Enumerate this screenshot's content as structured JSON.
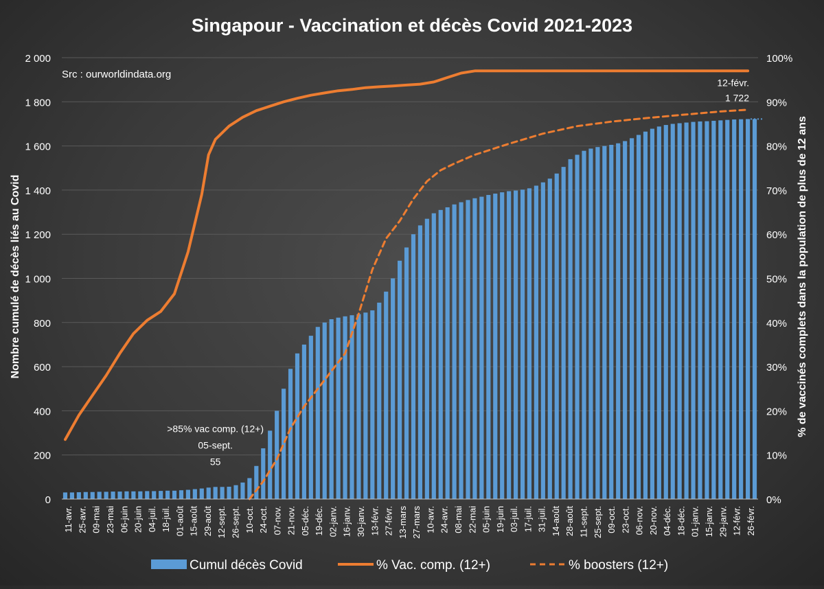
{
  "chart_data": {
    "type": "bar",
    "title": "Singapour - Vaccination et décès Covid 2021-2023",
    "source_note": "Src : ourworldindata.org",
    "ylabel": "Nombre cumulé de décès liés au Covid",
    "y2label": "% de vaccinés complets dans  la population de plus de 12 ans",
    "ylim": [
      0,
      2000
    ],
    "y_ticks": [
      "0",
      "200",
      "400",
      "600",
      "800",
      "1 000",
      "1 200",
      "1 400",
      "1 600",
      "1 800",
      "2 000"
    ],
    "y2lim": [
      0,
      100
    ],
    "y2_ticks": [
      "0%",
      "10%",
      "20%",
      "30%",
      "40%",
      "50%",
      "60%",
      "70%",
      "80%",
      "90%",
      "100%"
    ],
    "x_ticks": [
      "11-avr.",
      "25-avr.",
      "09-mai",
      "23-mai",
      "06-juin",
      "20-juin",
      "04-juil.",
      "18-juil.",
      "01-août",
      "15-août",
      "29-août",
      "12-sept.",
      "26-sept.",
      "10-oct.",
      "24-oct.",
      "07-nov.",
      "21-nov.",
      "05-déc.",
      "19-déc.",
      "02-janv.",
      "16-janv.",
      "30-janv.",
      "13-févr.",
      "27-févr.",
      "13-mars",
      "27-mars",
      "10-avr.",
      "24-avr.",
      "08-mai",
      "22-mai",
      "05-juin",
      "19-juin",
      "03-juil.",
      "17-juil.",
      "31-juil.",
      "14-août",
      "28-août",
      "11-sept.",
      "25-sept.",
      "09-oct.",
      "23-oct.",
      "06-nov.",
      "20-nov.",
      "04-déc.",
      "18-déc.",
      "01-janv.",
      "15-janv.",
      "29-janv.",
      "12-févr.",
      "26-févr."
    ],
    "grid": true,
    "legend_position": "bottom",
    "series": [
      {
        "name": "Cumul décès Covid",
        "type": "bar",
        "axis": "left",
        "color": "#5b9bd5",
        "values": [
          30,
          30,
          31,
          32,
          32,
          33,
          33,
          34,
          34,
          35,
          35,
          35,
          36,
          36,
          37,
          38,
          38,
          40,
          42,
          45,
          48,
          52,
          55,
          55,
          56,
          63,
          75,
          95,
          150,
          230,
          310,
          400,
          500,
          590,
          660,
          700,
          740,
          780,
          800,
          815,
          822,
          828,
          833,
          838,
          845,
          855,
          890,
          940,
          1000,
          1080,
          1140,
          1200,
          1240,
          1270,
          1295,
          1310,
          1322,
          1335,
          1345,
          1355,
          1363,
          1370,
          1378,
          1384,
          1390,
          1395,
          1398,
          1402,
          1408,
          1420,
          1435,
          1452,
          1475,
          1505,
          1540,
          1560,
          1578,
          1588,
          1595,
          1600,
          1605,
          1612,
          1622,
          1635,
          1650,
          1665,
          1678,
          1688,
          1695,
          1700,
          1703,
          1706,
          1709,
          1711,
          1712,
          1714,
          1716,
          1718,
          1720,
          1721,
          1722,
          1722
        ]
      },
      {
        "name": "% Vac. comp. (12+)",
        "type": "line",
        "axis": "right",
        "color": "#ed7d31",
        "dash": "solid",
        "points": [
          [
            0,
            13.5
          ],
          [
            2,
            19
          ],
          [
            4,
            23.5
          ],
          [
            6,
            28
          ],
          [
            8,
            33
          ],
          [
            10,
            37.5
          ],
          [
            12,
            40.5
          ],
          [
            14,
            42.5
          ],
          [
            16,
            46.5
          ],
          [
            18,
            56
          ],
          [
            20,
            69
          ],
          [
            21,
            78
          ],
          [
            22,
            81.5
          ],
          [
            24,
            84.5
          ],
          [
            26,
            86.5
          ],
          [
            28,
            88
          ],
          [
            30,
            89
          ],
          [
            32,
            90
          ],
          [
            34,
            90.8
          ],
          [
            36,
            91.5
          ],
          [
            38,
            92
          ],
          [
            40,
            92.5
          ],
          [
            42,
            92.8
          ],
          [
            44,
            93.2
          ],
          [
            46,
            93.4
          ],
          [
            48,
            93.6
          ],
          [
            50,
            93.8
          ],
          [
            52,
            94
          ],
          [
            54,
            94.5
          ],
          [
            56,
            95.5
          ],
          [
            58,
            96.5
          ],
          [
            60,
            97
          ],
          [
            80,
            97
          ],
          [
            100,
            97
          ]
        ]
      },
      {
        "name": "% boosters (12+)",
        "type": "line",
        "axis": "right",
        "color": "#ed7d31",
        "dash": "dashed",
        "points": [
          [
            27,
            0
          ],
          [
            29,
            4
          ],
          [
            31,
            9
          ],
          [
            33,
            16
          ],
          [
            35,
            21
          ],
          [
            37,
            25
          ],
          [
            39,
            29
          ],
          [
            41,
            33
          ],
          [
            43,
            42
          ],
          [
            45,
            52
          ],
          [
            47,
            59
          ],
          [
            49,
            63
          ],
          [
            51,
            68
          ],
          [
            53,
            72
          ],
          [
            55,
            74.5
          ],
          [
            57,
            76
          ],
          [
            60,
            78
          ],
          [
            65,
            80.5
          ],
          [
            70,
            82.8
          ],
          [
            75,
            84.5
          ],
          [
            80,
            85.5
          ],
          [
            85,
            86.3
          ],
          [
            90,
            87
          ],
          [
            96,
            87.8
          ],
          [
            100,
            88.2
          ]
        ]
      }
    ],
    "annotations": [
      {
        "text_lines": [
          ">85% vac comp. (12+)",
          "05-sept.",
          "55"
        ],
        "anchor_bar": 22
      },
      {
        "text_lines": [
          "12-févr.",
          "1 722"
        ],
        "anchor_bar": 101
      }
    ]
  },
  "colors": {
    "background": "#3a3a3a",
    "gridline": "#5a5a5a",
    "text": "#ffffff",
    "bar": "#5b9bd5",
    "vaccination_line": "#ed7d31"
  }
}
